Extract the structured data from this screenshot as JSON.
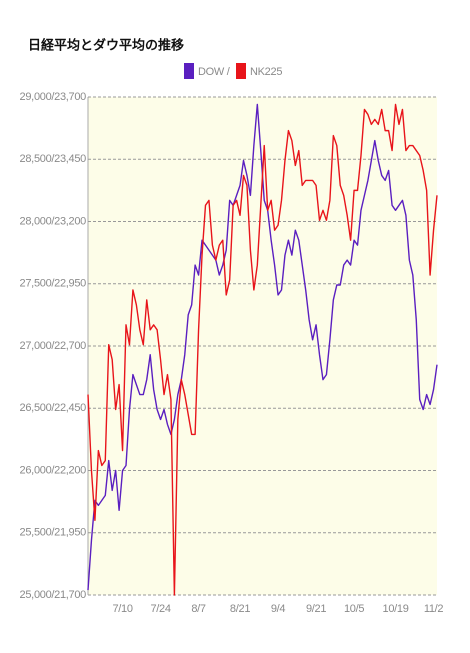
{
  "chart_data": {
    "type": "line",
    "title": "日経平均とダウ平均の推移",
    "categories": [
      null,
      null,
      null,
      null,
      null,
      null,
      null,
      null,
      null,
      null,
      "7/10",
      null,
      null,
      null,
      null,
      null,
      null,
      null,
      null,
      null,
      null,
      "7/24",
      null,
      null,
      null,
      null,
      null,
      null,
      null,
      null,
      null,
      null,
      "8/7",
      null,
      null,
      null,
      null,
      null,
      null,
      null,
      null,
      null,
      null,
      null,
      "8/21",
      null,
      null,
      null,
      null,
      null,
      null,
      null,
      null,
      null,
      null,
      "9/4",
      null,
      null,
      null,
      null,
      null,
      null,
      null,
      null,
      null,
      null,
      "9/21",
      null,
      null,
      null,
      null,
      null,
      null,
      null,
      null,
      null,
      null,
      "10/5",
      null,
      null,
      null,
      null,
      null,
      null,
      null,
      null,
      null,
      null,
      null,
      "10/19",
      null,
      null,
      null,
      null,
      null,
      null,
      null,
      null,
      null,
      null,
      "11/2",
      null
    ],
    "series": [
      {
        "name": "DOW /",
        "color": "#5a1fc0",
        "values": [
          25040,
          25440,
          25760,
          25720,
          25760,
          25800,
          26080,
          25840,
          26000,
          25680,
          26000,
          26040,
          26490,
          26770,
          26690,
          26610,
          26610,
          26730,
          26930,
          26650,
          26490,
          26410,
          26490,
          26370,
          26290,
          26410,
          26610,
          26730,
          26930,
          27250,
          27330,
          27650,
          27570,
          27850,
          27810,
          27770,
          27730,
          27690,
          27570,
          27650,
          27770,
          28170,
          28130,
          28210,
          28290,
          28490,
          28370,
          28210,
          28610,
          28940,
          28570,
          28170,
          28090,
          27850,
          27650,
          27410,
          27450,
          27730,
          27850,
          27730,
          27930,
          27850,
          27650,
          27450,
          27210,
          27050,
          27170,
          26930,
          26730,
          26770,
          27050,
          27370,
          27490,
          27490,
          27650,
          27690,
          27650,
          27850,
          27810,
          28090,
          28210,
          28330,
          28490,
          28650,
          28490,
          28370,
          28330,
          28410,
          28130,
          28090,
          28130,
          28170,
          28050,
          27690,
          27570,
          27210,
          26570,
          26490,
          26610,
          26530,
          26650,
          26850
        ]
      },
      {
        "name": "NK225",
        "color": "#e8141a",
        "axis": "y2",
        "values": [
          22505,
          22200,
          22000,
          22280,
          22220,
          22240,
          22705,
          22645,
          22445,
          22545,
          22280,
          22785,
          22705,
          22925,
          22865,
          22765,
          22705,
          22885,
          22765,
          22785,
          22765,
          22645,
          22505,
          22585,
          22485,
          21700,
          22405,
          22565,
          22505,
          22425,
          22345,
          22345,
          22765,
          23065,
          23265,
          23285,
          23105,
          23045,
          23105,
          23125,
          22905,
          22965,
          23265,
          23285,
          23225,
          23385,
          23345,
          23085,
          22925,
          23025,
          23265,
          23505,
          23245,
          23285,
          23165,
          23185,
          23285,
          23445,
          23565,
          23525,
          23425,
          23485,
          23345,
          23365,
          23365,
          23365,
          23345,
          23205,
          23245,
          23205,
          23285,
          23545,
          23505,
          23345,
          23305,
          23225,
          23125,
          23325,
          23325,
          23465,
          23650,
          23630,
          23590,
          23610,
          23590,
          23650,
          23565,
          23565,
          23485,
          23670,
          23590,
          23650,
          23485,
          23505,
          23505,
          23485,
          23465,
          23405,
          23325,
          22985,
          23165,
          23305
        ]
      }
    ],
    "ylim": [
      25000,
      29000
    ],
    "yticks": [
      {
        "value": 25000,
        "label": "25,000/21,700"
      },
      {
        "value": 25500,
        "label": "25,500/21,950"
      },
      {
        "value": 26000,
        "label": "26,000/22,200"
      },
      {
        "value": 26500,
        "label": "26,500/22,450"
      },
      {
        "value": 27000,
        "label": "27,000/22,700"
      },
      {
        "value": 27500,
        "label": "27,500/22,950"
      },
      {
        "value": 28000,
        "label": "28,000/23,200"
      },
      {
        "value": 28500,
        "label": "28,500/23,450"
      },
      {
        "value": 29000,
        "label": "29,000/23,700"
      }
    ],
    "y2lim": [
      21700,
      23700
    ],
    "grid": true
  }
}
